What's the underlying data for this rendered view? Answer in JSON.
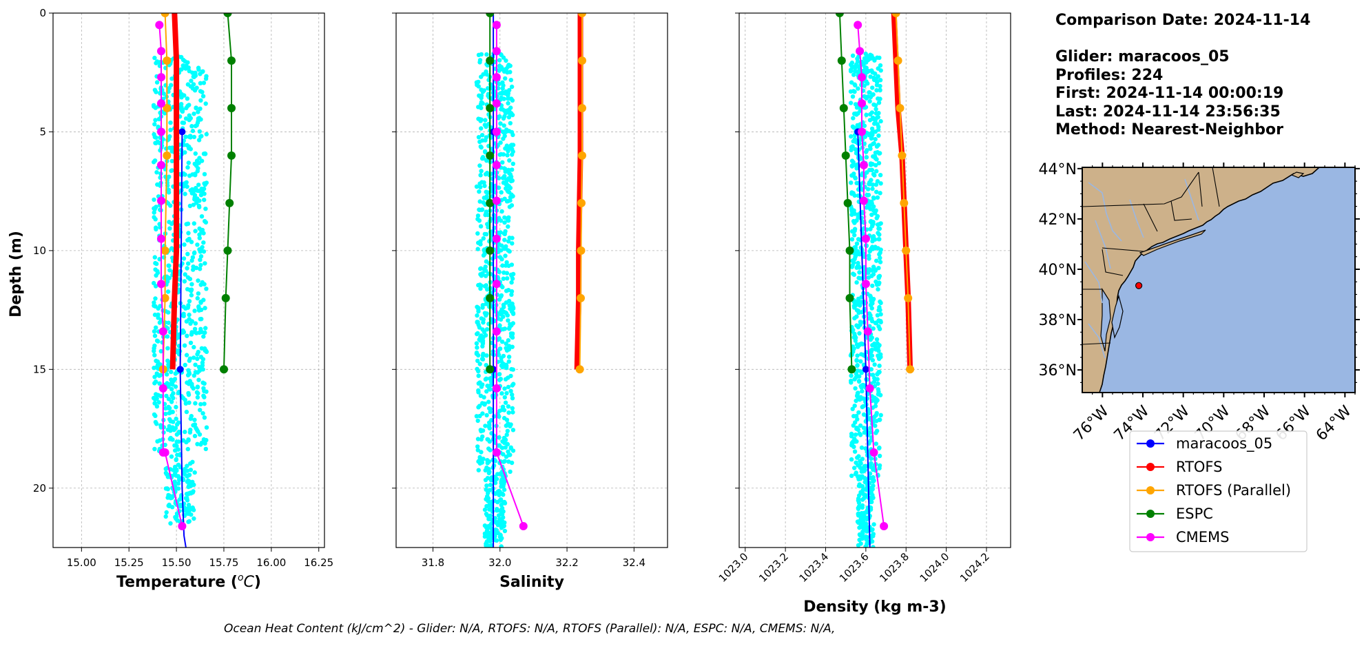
{
  "chart_data": [
    {
      "type": "line",
      "xlabel": "Temperature (",
      "xlabel_sym": "o",
      "xlabel_unit": "C",
      "xlabel_end": ")",
      "ylabel": "Depth (m)",
      "xlim": [
        14.85,
        16.28
      ],
      "ylim": [
        22.5,
        0
      ],
      "xticks": [
        "15.00",
        "15.25",
        "15.50",
        "15.75",
        "16.00",
        "16.25"
      ],
      "yticks": [
        "0",
        "5",
        "10",
        "15",
        "20"
      ],
      "grid": true,
      "glider_scatter": {
        "x_center": 15.52,
        "x_spread": 0.14,
        "y_range": [
          1.8,
          21.5
        ]
      },
      "series": [
        {
          "name": "maracoos_05",
          "color": "#0000ff",
          "width": 2,
          "marker_size": 5,
          "x": [
            15.53,
            15.52,
            15.53,
            15.54,
            15.55
          ],
          "y": [
            5,
            15,
            20,
            22,
            22.5
          ],
          "markers": [
            [
              15.53,
              5
            ],
            [
              15.52,
              15
            ]
          ]
        },
        {
          "name": "RTOFS",
          "color": "#ff0000",
          "width": 8,
          "marker_size": 0,
          "x": [
            15.49,
            15.5,
            15.5,
            15.5,
            15.49,
            15.48
          ],
          "y": [
            0,
            2,
            5,
            10,
            12,
            15
          ]
        },
        {
          "name": "RTOFS (Parallel)",
          "color": "#ffa500",
          "width": 2,
          "marker_size": 6,
          "x": [
            15.44,
            15.45,
            15.45,
            15.45,
            15.44,
            15.44,
            15.43
          ],
          "y": [
            0,
            2,
            4,
            6,
            10,
            12,
            15
          ]
        },
        {
          "name": "ESPC",
          "color": "#008000",
          "width": 2,
          "marker_size": 6,
          "x": [
            15.77,
            15.79,
            15.79,
            15.79,
            15.78,
            15.77,
            15.76,
            15.75
          ],
          "y": [
            0,
            2,
            4,
            6,
            8,
            10,
            12,
            15
          ]
        },
        {
          "name": "CMEMS",
          "color": "#ff00ff",
          "width": 2,
          "marker_size": 6,
          "x": [
            15.41,
            15.42,
            15.42,
            15.42,
            15.42,
            15.42,
            15.42,
            15.42,
            15.42,
            15.43,
            15.43,
            15.43,
            15.44,
            15.53
          ],
          "y": [
            0.5,
            1.6,
            2.7,
            3.8,
            5,
            6.4,
            7.9,
            9.5,
            11.4,
            13.4,
            15.8,
            18.5,
            18.5,
            21.6
          ]
        }
      ]
    },
    {
      "type": "line",
      "xlabel": "Salinity",
      "ylabel": "",
      "xlim": [
        31.69,
        32.5
      ],
      "ylim": [
        22.5,
        0
      ],
      "xticks": [
        "31.8",
        "32.0",
        "32.2",
        "32.4"
      ],
      "yticks": [
        "0",
        "5",
        "10",
        "15",
        "20"
      ],
      "grid": true,
      "glider_scatter": {
        "x_center": 31.985,
        "x_spread": 0.055,
        "y_range": [
          1.7,
          22.5
        ]
      },
      "series": [
        {
          "name": "maracoos_05",
          "color": "#0000ff",
          "width": 2,
          "marker_size": 5,
          "x": [
            31.98,
            31.98,
            31.98,
            31.98
          ],
          "y": [
            0,
            5,
            15,
            22.5
          ],
          "markers": [
            [
              31.98,
              5
            ],
            [
              31.98,
              15
            ]
          ]
        },
        {
          "name": "RTOFS",
          "color": "#ff0000",
          "width": 8,
          "marker_size": 0,
          "x": [
            32.24,
            32.24,
            32.24,
            32.235,
            32.235,
            32.23
          ],
          "y": [
            0,
            2,
            6,
            10,
            12,
            15
          ]
        },
        {
          "name": "RTOFS (Parallel)",
          "color": "#ffa500",
          "width": 2,
          "marker_size": 6,
          "x": [
            32.245,
            32.245,
            32.245,
            32.245,
            32.243,
            32.242,
            32.241,
            32.238
          ],
          "y": [
            0,
            2,
            4,
            6,
            8,
            10,
            12,
            15
          ]
        },
        {
          "name": "ESPC",
          "color": "#008000",
          "width": 2,
          "marker_size": 6,
          "x": [
            31.97,
            31.97,
            31.97,
            31.97,
            31.97,
            31.97,
            31.97,
            31.97
          ],
          "y": [
            0,
            2,
            4,
            6,
            8,
            10,
            12,
            15
          ]
        },
        {
          "name": "CMEMS",
          "color": "#ff00ff",
          "width": 2,
          "marker_size": 6,
          "x": [
            31.99,
            31.99,
            31.99,
            31.99,
            31.99,
            31.99,
            31.99,
            31.99,
            31.99,
            31.99,
            31.99,
            31.99,
            32.07
          ],
          "y": [
            0.5,
            1.6,
            2.7,
            3.8,
            5,
            6.4,
            7.9,
            9.5,
            11.4,
            13.4,
            15.8,
            18.5,
            21.6
          ]
        }
      ]
    },
    {
      "type": "line",
      "xlabel": "Density (kg m-3)",
      "ylabel": "",
      "xlim": [
        1022.97,
        1024.32
      ],
      "ylim": [
        22.5,
        0
      ],
      "xticks": [
        "1023.0",
        "1023.2",
        "1023.4",
        "1023.6",
        "1023.8",
        "1024.0",
        "1024.2"
      ],
      "yticks": [
        "0",
        "5",
        "10",
        "15",
        "20"
      ],
      "grid": true,
      "glider_scatter": {
        "x_center": 1023.6,
        "x_spread": 0.075,
        "y_range": [
          1.7,
          22.5
        ]
      },
      "series": [
        {
          "name": "maracoos_05",
          "color": "#0000ff",
          "width": 2,
          "marker_size": 5,
          "x": [
            1023.56,
            1023.58,
            1023.6,
            1023.62
          ],
          "y": [
            5,
            10,
            15,
            22.5
          ],
          "markers": [
            [
              1023.56,
              5
            ],
            [
              1023.6,
              15
            ]
          ]
        },
        {
          "name": "RTOFS",
          "color": "#ff0000",
          "width": 8,
          "marker_size": 0,
          "x": [
            1023.74,
            1023.76,
            1023.78,
            1023.8,
            1023.81,
            1023.82
          ],
          "y": [
            0,
            4,
            6,
            10,
            12,
            15
          ]
        },
        {
          "name": "RTOFS (Parallel)",
          "color": "#ffa500",
          "width": 2,
          "marker_size": 6,
          "x": [
            1023.75,
            1023.76,
            1023.77,
            1023.78,
            1023.79,
            1023.8,
            1023.81,
            1023.82
          ],
          "y": [
            0,
            2,
            4,
            6,
            8,
            10,
            12,
            15
          ]
        },
        {
          "name": "ESPC",
          "color": "#008000",
          "width": 2,
          "marker_size": 6,
          "x": [
            1023.47,
            1023.48,
            1023.49,
            1023.5,
            1023.51,
            1023.52,
            1023.52,
            1023.53
          ],
          "y": [
            0,
            2,
            4,
            6,
            8,
            10,
            12,
            15
          ]
        },
        {
          "name": "CMEMS",
          "color": "#ff00ff",
          "width": 2,
          "marker_size": 6,
          "x": [
            1023.56,
            1023.57,
            1023.58,
            1023.58,
            1023.58,
            1023.59,
            1023.59,
            1023.6,
            1023.6,
            1023.61,
            1023.62,
            1023.64,
            1023.69
          ],
          "y": [
            0.5,
            1.6,
            2.7,
            3.8,
            5,
            6.4,
            7.9,
            9.5,
            11.4,
            13.4,
            15.8,
            18.5,
            21.6
          ]
        }
      ]
    }
  ],
  "info": {
    "comparison_date": "Comparison Date: 2024-11-14",
    "glider": "Glider: maracoos_05",
    "profiles": "Profiles: 224",
    "first": "First: 2024-11-14 00:00:19",
    "last": "Last: 2024-11-14 23:56:35",
    "method": "Method: Nearest-Neighbor"
  },
  "map": {
    "lat_labels": [
      "44°N",
      "42°N",
      "40°N",
      "38°N",
      "36°N"
    ],
    "lon_labels": [
      "76°W",
      "74°W",
      "72°W",
      "70°W",
      "68°W",
      "66°W",
      "64°W"
    ],
    "land_color": "#cdb18a",
    "ocean_color": "#9ab7e3",
    "glider_lon": -74.2,
    "glider_lat": 39.35
  },
  "legend": [
    {
      "label": "maracoos_05",
      "color": "#0000ff"
    },
    {
      "label": "RTOFS",
      "color": "#ff0000"
    },
    {
      "label": "RTOFS (Parallel)",
      "color": "#ffa500"
    },
    {
      "label": "ESPC",
      "color": "#008000"
    },
    {
      "label": "CMEMS",
      "color": "#ff00ff"
    }
  ],
  "footer": "Ocean Heat Content (kJ/cm^2) - Glider: N/A,  RTOFS: N/A,  RTOFS (Parallel): N/A,  ESPC: N/A,  CMEMS: N/A,"
}
